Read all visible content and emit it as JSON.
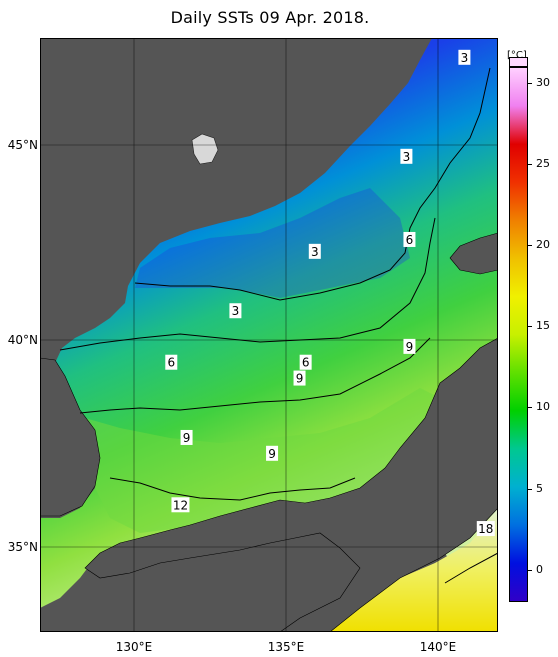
{
  "title": "Daily SSTs 09 Apr. 2018.",
  "colorbar": {
    "unit": "[°C]",
    "ticks": [
      "30",
      "25",
      "20",
      "15",
      "10",
      "5",
      "0"
    ],
    "tick_values": [
      30,
      25,
      20,
      15,
      10,
      5,
      0
    ],
    "range": [
      -2,
      31
    ],
    "stops": [
      "#3000c8",
      "#0010e0",
      "#0070e0",
      "#00b0d0",
      "#00c890",
      "#00d000",
      "#60e000",
      "#c8f000",
      "#f0f000",
      "#f0c000",
      "#f08000",
      "#f03000",
      "#e00000",
      "#f080f0",
      "#ffd0ff"
    ]
  },
  "axes": {
    "lat_labels": [
      "45°N",
      "40°N",
      "35°N"
    ],
    "lat_values": [
      45,
      40,
      35
    ],
    "lon_labels": [
      "130°E",
      "135°E",
      "140°E"
    ],
    "lon_values": [
      130,
      135,
      140
    ]
  },
  "map_extent": {
    "lon": [
      127,
      142
    ],
    "lat": [
      33,
      48
    ]
  },
  "contour_labels": [
    {
      "text": "3",
      "lon": 140.9,
      "lat": 47.5
    },
    {
      "text": "3",
      "lon": 139.0,
      "lat": 45.0
    },
    {
      "text": "3",
      "lon": 136.0,
      "lat": 42.6
    },
    {
      "text": "6",
      "lon": 139.1,
      "lat": 42.9
    },
    {
      "text": "3",
      "lon": 133.4,
      "lat": 41.1
    },
    {
      "text": "6",
      "lon": 131.3,
      "lat": 39.8
    },
    {
      "text": "6",
      "lon": 135.7,
      "lat": 39.8
    },
    {
      "text": "9",
      "lon": 139.1,
      "lat": 40.2
    },
    {
      "text": "9",
      "lon": 135.5,
      "lat": 39.4
    },
    {
      "text": "9",
      "lon": 131.8,
      "lat": 37.9
    },
    {
      "text": "9",
      "lon": 134.6,
      "lat": 37.5
    },
    {
      "text": "12",
      "lon": 131.6,
      "lat": 36.2
    },
    {
      "text": "18",
      "lon": 141.6,
      "lat": 35.6
    }
  ]
}
